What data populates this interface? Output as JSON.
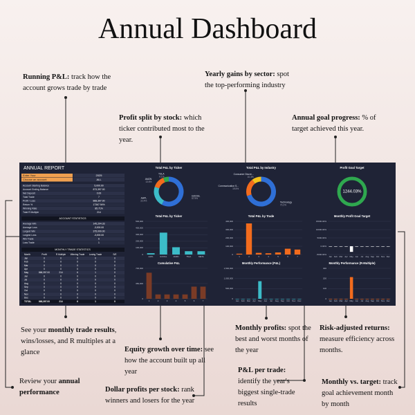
{
  "title": "Annual Dashboard",
  "callouts": [
    {
      "bold": "Running P&L:",
      "text": "track how the account grows trade by trade"
    },
    {
      "bold": "Yearly gains by sector:",
      "text": "spot the top-performing industry"
    },
    {
      "bold": "Profit split by stock:",
      "text": "which ticker contributed most to the year."
    },
    {
      "bold": "Annual goal progress:",
      "text": "% of target achieved this year."
    },
    {
      "bold": "",
      "text": "See your"
    },
    {
      "bold": "monthly trade results",
      "text": ", wins/losses, and R multiples at a glance"
    },
    {
      "bold": "Equity growth over time:",
      "text": "see how the account built up all year"
    },
    {
      "bold": "Monthly profits:",
      "text": "spot the best and worst months of the year"
    },
    {
      "bold": "Risk-adjusted returns:",
      "text": "measure efficiency across months."
    },
    {
      "bold": "P&L per trade:",
      "text": "identify the year's biggest single-trade results"
    },
    {
      "bold": "Dollar profits per stock:",
      "text": "rank winners and losers for the year"
    },
    {
      "bold": "annual performance",
      "text": "Review your"
    },
    {
      "bold": "Monthly vs. target:",
      "text": "track goal achievement month by month"
    }
  ],
  "dashboard": {
    "header": "ANNUAL REPORT",
    "inputs": [
      [
        "Enter Your",
        "2025"
      ],
      [
        "Choose an account",
        "ALL"
      ]
    ],
    "account_stats": [
      [
        "Account Starting Balance",
        "5,000.00"
      ],
      [
        "Account Ending Balance",
        "873,397.00"
      ],
      [
        "Net Deposit",
        "0.00"
      ],
      [
        "Total Trade",
        "7"
      ],
      [
        "Profit / Loss",
        "868,397.00"
      ],
      [
        "Return %",
        "17367.94%"
      ],
      [
        "Winning Rate",
        "85.71%"
      ],
      [
        "Total R Multiple",
        "214"
      ]
    ],
    "trade_stats_title": "ACCOUNT STATISTICS",
    "trade_stats": [
      [
        "Average Win",
        "145,204.33"
      ],
      [
        "Average Loss",
        "-3,000.00"
      ],
      [
        "Largest Win",
        "375,000.00"
      ],
      [
        "Largest Loss",
        "-3,000.00"
      ],
      [
        "Win Trade",
        "6"
      ],
      [
        "Loss Trade",
        "1"
      ]
    ],
    "monthly_title": "MONTHLY TRADE STATISTICS",
    "monthly_columns": [
      "Month",
      "Profit",
      "R Multiple",
      "Winning Trade",
      "Losing Trade",
      "S/E"
    ],
    "monthly_rows": [
      [
        "Jan",
        "0",
        "0",
        "0",
        "0",
        "0"
      ],
      [
        "Feb",
        "0",
        "0",
        "0",
        "0",
        "0"
      ],
      [
        "Mar",
        "0",
        "0",
        "0",
        "0",
        "0"
      ],
      [
        "Apr",
        "0",
        "0",
        "0",
        "0",
        "0"
      ],
      [
        "May",
        "868,397.00",
        "214",
        "6",
        "1",
        "0"
      ],
      [
        "Jun",
        "0",
        "0",
        "0",
        "0",
        "0"
      ],
      [
        "Jul",
        "0",
        "0",
        "0",
        "0",
        "0"
      ],
      [
        "Aug",
        "0",
        "0",
        "0",
        "0",
        "0"
      ],
      [
        "Sep",
        "0",
        "0",
        "0",
        "0",
        "0"
      ],
      [
        "Oct",
        "0",
        "0",
        "0",
        "0",
        "0"
      ],
      [
        "Nov",
        "0",
        "0",
        "0",
        "0",
        "0"
      ],
      [
        "Dec",
        "0",
        "0",
        "0",
        "0",
        "0"
      ],
      [
        "TOTAL",
        "868,397.00",
        "214",
        "6",
        "1",
        "0"
      ]
    ],
    "charts": [
      {
        "type": "donut",
        "title": "Total P&L by Ticker",
        "categories": [
          "GOOGL",
          "AAPL",
          "AMZN",
          "TSLA"
        ],
        "values": [
          57.9,
          22.4,
          13.6,
          6.1
        ],
        "value_labels": [
          "57.9%",
          "22.4%",
          "13.6%",
          "6.1%"
        ],
        "colors": [
          "#2f6fd6",
          "#3cbcc8",
          "#f26b1d",
          "#2fa84f"
        ]
      },
      {
        "type": "donut",
        "title": "Total P&L by Industry",
        "categories": [
          "Technology",
          "Communication S...",
          "Consumer Discre..."
        ],
        "values": [
          70.2,
          19.5,
          10.3
        ],
        "value_labels": [
          "70.2%",
          "19.5%",
          "10.3%"
        ],
        "colors": [
          "#2f6fd6",
          "#f26b1d",
          "#f2c21d"
        ]
      },
      {
        "type": "ring",
        "title": "Profit Goal Target",
        "value": 1244.03,
        "value_label": "1244.03%",
        "color": "#2fa84f"
      },
      {
        "type": "bar",
        "title": "Total P&L by Ticker",
        "categories": [
          "AAPL",
          "GOOGL",
          "AMZN",
          "TSLA",
          "META"
        ],
        "values": [
          20000,
          330000,
          110000,
          50000,
          50000
        ],
        "color": "#3cbcc8",
        "ylim": [
          0,
          500000
        ],
        "yticks": [
          0,
          {
            "value": 100000,
            "label": "100,000"
          },
          {
            "value": 200000,
            "label": "200,000"
          },
          {
            "value": 300000,
            "label": "300,000"
          },
          {
            "value": 400000,
            "label": "400,000"
          },
          {
            "value": 500000,
            "label": "500,000"
          }
        ]
      },
      {
        "type": "bar",
        "title": "Total P&L by Trade",
        "categories": [
          "1",
          "2",
          "3",
          "4",
          "5",
          "6",
          "7"
        ],
        "values": [
          10000,
          375000,
          20000,
          15000,
          25000,
          70000,
          60000
        ],
        "color": "#f26b1d",
        "ylim": [
          0,
          400000
        ],
        "yticks": [
          0,
          {
            "value": 100000,
            "label": "100,000"
          },
          {
            "value": 200000,
            "label": "200,000"
          },
          {
            "value": 300000,
            "label": "300,000"
          },
          {
            "value": 400000,
            "label": "400,000"
          }
        ]
      },
      {
        "type": "bar",
        "title": "Monthly Profit Goal Target",
        "categories": [
          "Jan",
          "Feb",
          "Mar",
          "Apr",
          "May",
          "Jun",
          "Jul",
          "Aug",
          "Sep",
          "Oct",
          "Nov",
          "Dec"
        ],
        "values": [
          0,
          0,
          0,
          0,
          -3400,
          0,
          0,
          0,
          0,
          0,
          0,
          0
        ],
        "color": "#ffffff",
        "ylim": [
          -5000,
          15000
        ],
        "yticks": [
          {
            "value": -5000,
            "label": "-5000.00%"
          },
          {
            "value": 0,
            "label": "0.00%"
          },
          {
            "value": 5000,
            "label": "5000.00%"
          },
          {
            "value": 10000,
            "label": "10000.00%"
          },
          {
            "value": 15000,
            "label": "15000.00%"
          }
        ]
      },
      {
        "type": "bar",
        "title": "Cumulative P&L",
        "categories": [
          "1",
          "2",
          "3",
          "4",
          "5",
          "6",
          "7"
        ],
        "values": [
          600000,
          100000,
          100000,
          100000,
          100000,
          280000,
          280000
        ],
        "color": "#7a3b26",
        "ylim": [
          0,
          700000
        ],
        "yticks": [
          0,
          {
            "value": 350000,
            "label": "350,000"
          },
          {
            "value": 700000,
            "label": "700,000"
          }
        ]
      },
      {
        "type": "bar",
        "title": "Monthly Performance (P&L)",
        "categories": [
          "Jan",
          "Feb",
          "Mar",
          "Apr",
          "May",
          "Jun",
          "Jul",
          "Aug",
          "Sep",
          "Oct",
          "Nov",
          "Dec"
        ],
        "values": [
          0,
          0,
          0,
          0,
          868397,
          0,
          0,
          0,
          0,
          0,
          0,
          0
        ],
        "color": "#3cbcc8",
        "ylim": [
          0,
          1500000
        ],
        "yticks": [
          0,
          {
            "value": 500000,
            "label": "500,000"
          },
          {
            "value": 1000000,
            "label": "1,000,000"
          },
          {
            "value": 1500000,
            "label": "1,500,000"
          }
        ]
      },
      {
        "type": "bar",
        "title": "Monthly Performance (R-Multiple)",
        "categories": [
          "Jan",
          "Feb",
          "Mar",
          "Apr",
          "May",
          "Jun",
          "Jul",
          "Aug",
          "Sep",
          "Oct",
          "Nov",
          "Dec"
        ],
        "values": [
          0,
          0,
          0,
          0,
          214,
          0,
          0,
          0,
          0,
          0,
          0,
          0
        ],
        "color": "#f26b1d",
        "ylim": [
          0,
          300
        ],
        "yticks": [
          0,
          100,
          200,
          300
        ]
      }
    ]
  }
}
